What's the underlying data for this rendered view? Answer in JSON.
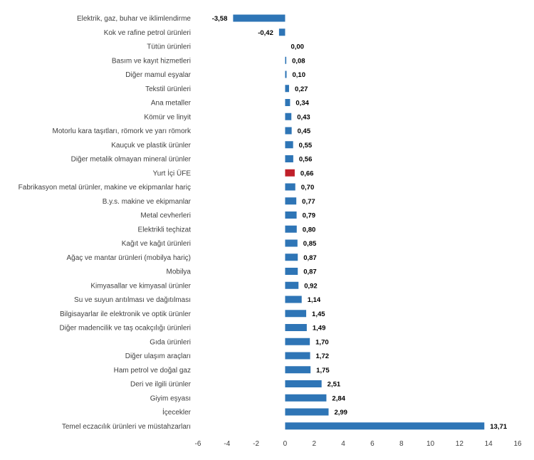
{
  "chart_data": {
    "type": "bar",
    "orientation": "horizontal",
    "title": "",
    "xlabel": "",
    "ylabel": "",
    "xlim": [
      -6,
      16
    ],
    "xticks": [
      "-6",
      "-4",
      "-2",
      "0",
      "2",
      "4",
      "6",
      "8",
      "10",
      "12",
      "14",
      "16"
    ],
    "grid": false,
    "colors": {
      "default": "#2E75B6",
      "highlight": "#C0202A"
    },
    "highlight_category": "Yurt İçi ÜFE",
    "categories": [
      "Elektrik, gaz, buhar ve iklimlendirme",
      "Kok ve rafine petrol ürünleri",
      "Tütün ürünleri",
      "Basım ve kayıt hizmetleri",
      "Diğer mamul eşyalar",
      "Tekstil ürünleri",
      "Ana metaller",
      "Kömür ve linyit",
      "Motorlu kara taşıtları, römork ve yarı römork",
      "Kauçuk ve plastik ürünler",
      "Diğer metalik olmayan mineral ürünler",
      "Yurt İçi ÜFE",
      "Fabrikasyon metal ürünler, makine ve ekipmanlar hariç",
      "B.y.s. makine ve ekipmanlar",
      "Metal cevherleri",
      "Elektrikli teçhizat",
      "Kağıt ve kağıt ürünleri",
      "Ağaç ve mantar ürünleri (mobilya hariç)",
      "Mobilya",
      "Kimyasallar ve kimyasal ürünler",
      "Su ve suyun arıtılması ve dağıtılması",
      "Bilgisayarlar ile elektronik ve optik ürünler",
      "Diğer madencilik ve taş ocakçılığı ürünleri",
      "Gıda ürünleri",
      "Diğer ulaşım araçları",
      "Ham petrol ve doğal gaz",
      "Deri ve ilgili ürünler",
      "Giyim eşyası",
      "İçecekler",
      "Temel eczacılık ürünleri ve müstahzarları"
    ],
    "values": [
      -3.58,
      -0.42,
      0.0,
      0.08,
      0.1,
      0.27,
      0.34,
      0.43,
      0.45,
      0.55,
      0.56,
      0.66,
      0.7,
      0.77,
      0.79,
      0.8,
      0.85,
      0.87,
      0.87,
      0.92,
      1.14,
      1.45,
      1.49,
      1.7,
      1.72,
      1.75,
      2.51,
      2.84,
      2.99,
      13.71
    ],
    "value_labels": [
      "-3,58",
      "-0,42",
      "0,00",
      "0,08",
      "0,10",
      "0,27",
      "0,34",
      "0,43",
      "0,45",
      "0,55",
      "0,56",
      "0,66",
      "0,70",
      "0,77",
      "0,79",
      "0,80",
      "0,85",
      "0,87",
      "0,87",
      "0,92",
      "1,14",
      "1,45",
      "1,49",
      "1,70",
      "1,72",
      "1,75",
      "2,51",
      "2,84",
      "2,99",
      "13,71"
    ]
  }
}
